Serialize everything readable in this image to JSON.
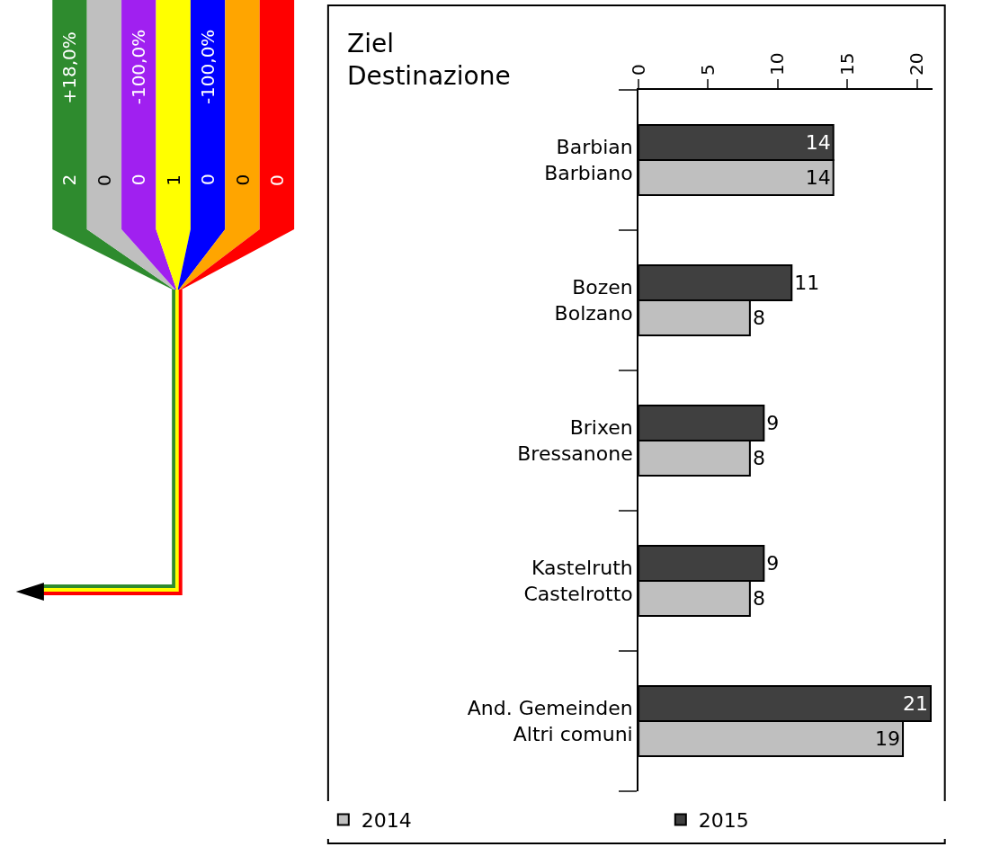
{
  "chart_data": [
    {
      "type": "other",
      "categories": [
        "2",
        "0",
        "0",
        "1",
        "0",
        "0",
        "0"
      ],
      "colors": [
        "#2e8b2e",
        "#bfbfbf",
        "#a020f0",
        "#ffff00",
        "#0000ff",
        "#ffa500",
        "#ff0000"
      ],
      "annotations": [
        "+18,0%",
        null,
        "-100,0%",
        null,
        "-100,0%",
        null,
        null
      ]
    },
    {
      "type": "bar",
      "orientation": "horizontal",
      "title": "Ziel\nDestinazione",
      "categories": [
        "Barbian\nBarbiano",
        "Bozen\nBolzano",
        "Brixen\nBressanone",
        "Kastelruth\nCastelrotto",
        "And. Gemeinden\nAltri comuni"
      ],
      "series": [
        {
          "name": "2015",
          "color": "#404040",
          "values": [
            14,
            11,
            9,
            9,
            21
          ]
        },
        {
          "name": "2014",
          "color": "#bfbfbf",
          "values": [
            14,
            8,
            8,
            8,
            19
          ]
        }
      ],
      "xlim": [
        0,
        21.1
      ],
      "xticks": [
        0,
        5,
        10,
        15,
        20
      ],
      "legend": "bottom",
      "data_labels": true
    }
  ]
}
